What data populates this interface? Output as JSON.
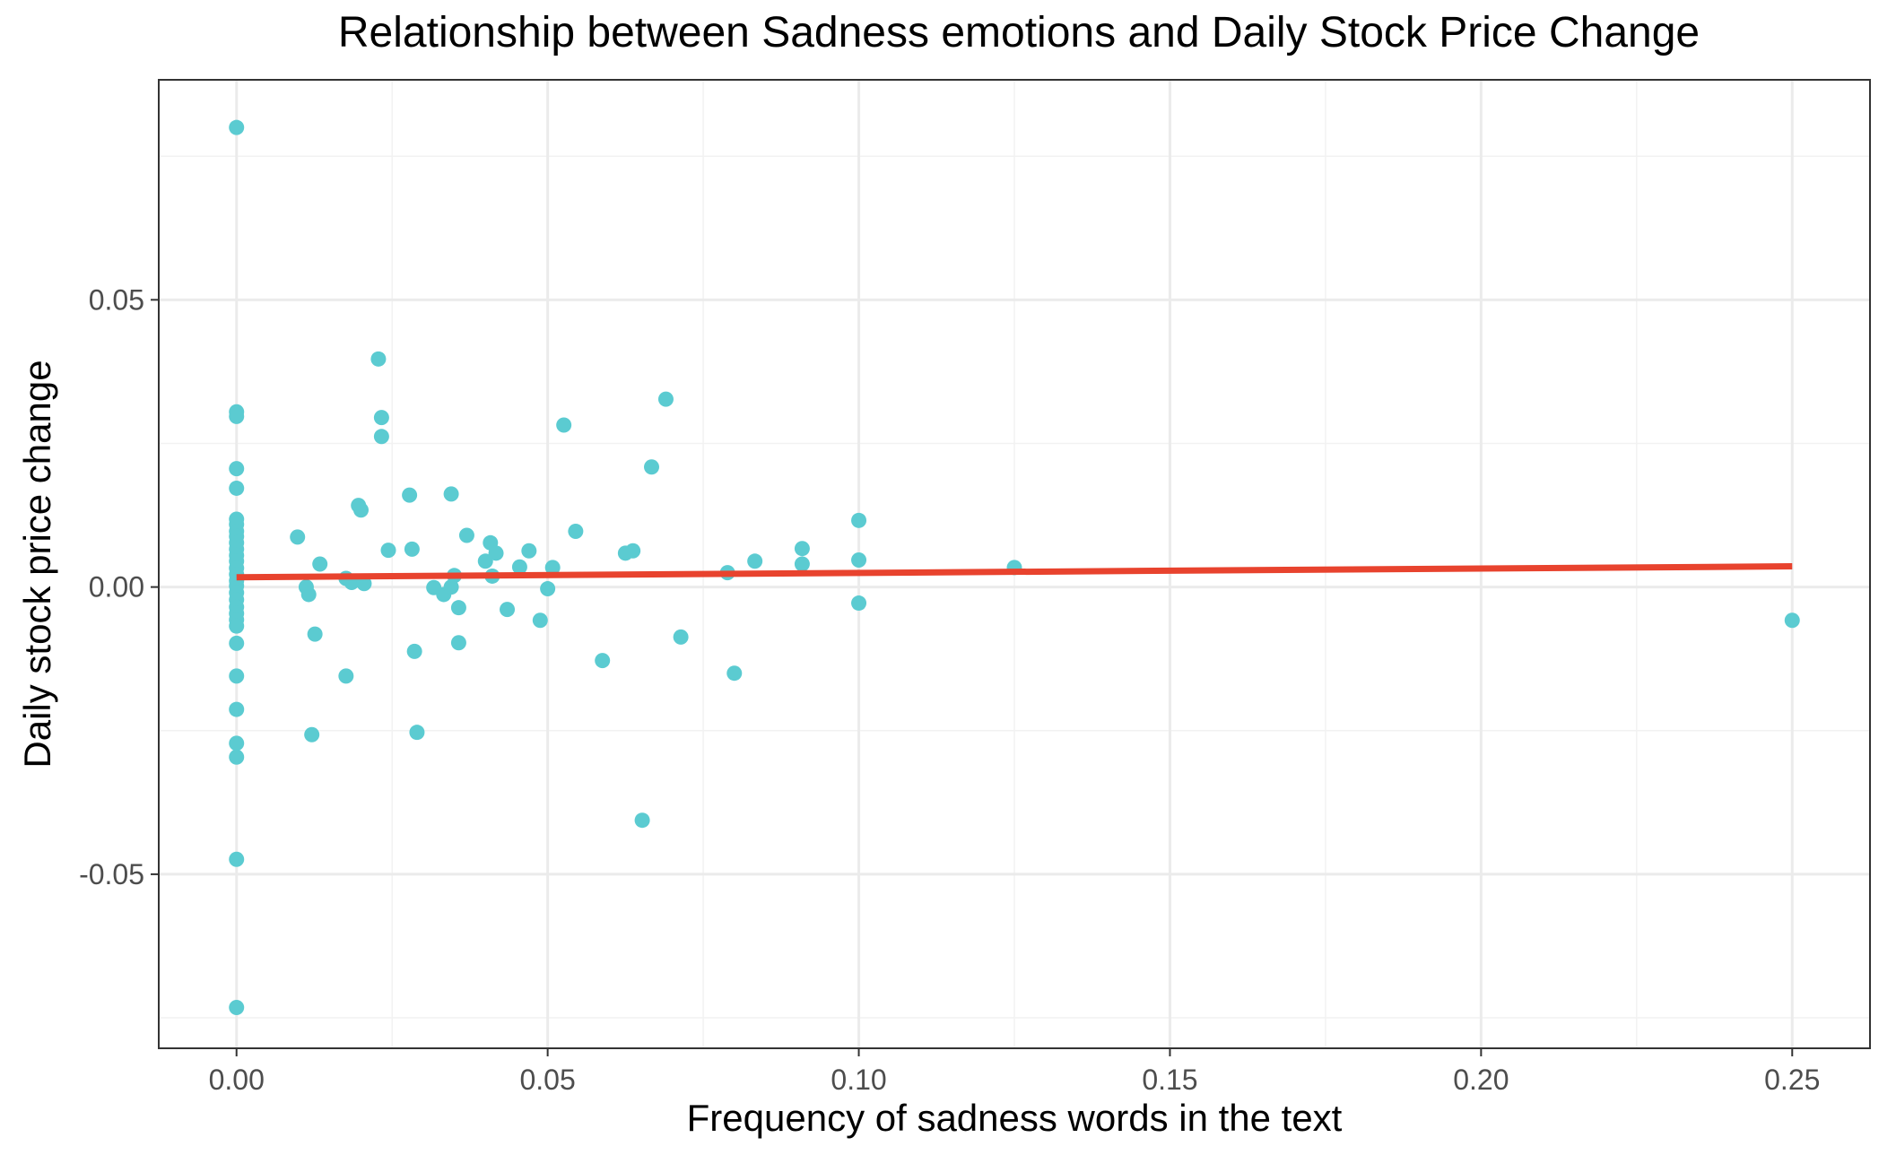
{
  "chart_data": {
    "type": "scatter",
    "title": "Relationship between Sadness emotions and Daily Stock Price Change",
    "xlabel": "Frequency of sadness words in the text",
    "ylabel": "Daily stock price change",
    "xlim": [
      -0.0125,
      0.2625
    ],
    "ylim": [
      -0.0803,
      0.0883
    ],
    "x_ticks": [
      0.0,
      0.05,
      0.1,
      0.15,
      0.2,
      0.25
    ],
    "x_tick_labels": [
      "0.00",
      "0.05",
      "0.10",
      "0.15",
      "0.20",
      "0.25"
    ],
    "y_ticks": [
      -0.05,
      0.0,
      0.05
    ],
    "y_tick_labels": [
      "-0.05",
      "0.00",
      "0.05"
    ],
    "grid": true,
    "colors": {
      "points": "#5bcbd1",
      "trend_line": "#e8432e"
    },
    "series": [
      {
        "values": [
          {
            "x": 0.0,
            "y": 0.08
          },
          {
            "x": 0.0,
            "y": 0.0305
          },
          {
            "x": 0.0,
            "y": 0.0297
          },
          {
            "x": 0.0,
            "y": 0.0206
          },
          {
            "x": 0.0,
            "y": 0.0172
          },
          {
            "x": 0.0,
            "y": 0.0118
          },
          {
            "x": 0.0,
            "y": 0.0109
          },
          {
            "x": 0.0,
            "y": 0.0097
          },
          {
            "x": 0.0,
            "y": 0.0088
          },
          {
            "x": 0.0,
            "y": 0.0077
          },
          {
            "x": 0.0,
            "y": 0.0066
          },
          {
            "x": 0.0,
            "y": 0.0055
          },
          {
            "x": 0.0,
            "y": 0.0045
          },
          {
            "x": 0.0,
            "y": 0.0033
          },
          {
            "x": 0.0,
            "y": 0.0022
          },
          {
            "x": 0.0,
            "y": 0.0011
          },
          {
            "x": 0.0,
            "y": 0.0002
          },
          {
            "x": 0.0,
            "y": -0.001
          },
          {
            "x": 0.0,
            "y": -0.0022
          },
          {
            "x": 0.0,
            "y": -0.0035
          },
          {
            "x": 0.0,
            "y": -0.0046
          },
          {
            "x": 0.0,
            "y": -0.0057
          },
          {
            "x": 0.0,
            "y": -0.0068
          },
          {
            "x": 0.0,
            "y": -0.0098
          },
          {
            "x": 0.0,
            "y": -0.0155
          },
          {
            "x": 0.0,
            "y": -0.0213
          },
          {
            "x": 0.0,
            "y": -0.0272
          },
          {
            "x": 0.0,
            "y": -0.0296
          },
          {
            "x": 0.0,
            "y": -0.0474
          },
          {
            "x": 0.0,
            "y": -0.0732
          },
          {
            "x": 0.0098,
            "y": 0.0087
          },
          {
            "x": 0.0112,
            "y": 0.0
          },
          {
            "x": 0.0116,
            "y": -0.0013
          },
          {
            "x": 0.0121,
            "y": -0.0257
          },
          {
            "x": 0.0126,
            "y": -0.0082
          },
          {
            "x": 0.0134,
            "y": 0.004
          },
          {
            "x": 0.0176,
            "y": 0.0015
          },
          {
            "x": 0.0176,
            "y": -0.0155
          },
          {
            "x": 0.0185,
            "y": 0.0008
          },
          {
            "x": 0.0196,
            "y": 0.0142
          },
          {
            "x": 0.02,
            "y": 0.0134
          },
          {
            "x": 0.0205,
            "y": 0.0006
          },
          {
            "x": 0.0228,
            "y": 0.0397
          },
          {
            "x": 0.0233,
            "y": 0.0295
          },
          {
            "x": 0.0233,
            "y": 0.0262
          },
          {
            "x": 0.0244,
            "y": 0.0064
          },
          {
            "x": 0.0278,
            "y": 0.016
          },
          {
            "x": 0.0282,
            "y": 0.0066
          },
          {
            "x": 0.0286,
            "y": -0.0112
          },
          {
            "x": 0.029,
            "y": -0.0253
          },
          {
            "x": 0.0317,
            "y": -0.0001
          },
          {
            "x": 0.0333,
            "y": -0.0013
          },
          {
            "x": 0.0345,
            "y": 0.0162
          },
          {
            "x": 0.0345,
            "y": 0.0
          },
          {
            "x": 0.035,
            "y": 0.002
          },
          {
            "x": 0.0357,
            "y": -0.0036
          },
          {
            "x": 0.0357,
            "y": -0.0097
          },
          {
            "x": 0.037,
            "y": 0.009
          },
          {
            "x": 0.04,
            "y": 0.0045
          },
          {
            "x": 0.0408,
            "y": 0.0077
          },
          {
            "x": 0.0411,
            "y": 0.0019
          },
          {
            "x": 0.0417,
            "y": 0.0059
          },
          {
            "x": 0.0435,
            "y": -0.0039
          },
          {
            "x": 0.0455,
            "y": 0.0035
          },
          {
            "x": 0.047,
            "y": 0.0063
          },
          {
            "x": 0.0488,
            "y": -0.0058
          },
          {
            "x": 0.05,
            "y": -0.0003
          },
          {
            "x": 0.0508,
            "y": 0.0034
          },
          {
            "x": 0.0526,
            "y": 0.0282
          },
          {
            "x": 0.0545,
            "y": 0.0097
          },
          {
            "x": 0.0588,
            "y": -0.0128
          },
          {
            "x": 0.0625,
            "y": 0.0059
          },
          {
            "x": 0.0637,
            "y": 0.0063
          },
          {
            "x": 0.0652,
            "y": -0.0406
          },
          {
            "x": 0.0667,
            "y": 0.0209
          },
          {
            "x": 0.069,
            "y": 0.0327
          },
          {
            "x": 0.0714,
            "y": -0.0087
          },
          {
            "x": 0.0789,
            "y": 0.0025
          },
          {
            "x": 0.08,
            "y": -0.015
          },
          {
            "x": 0.0833,
            "y": 0.0045
          },
          {
            "x": 0.0909,
            "y": 0.0067
          },
          {
            "x": 0.0909,
            "y": 0.004
          },
          {
            "x": 0.1,
            "y": 0.0116
          },
          {
            "x": 0.1,
            "y": 0.0047
          },
          {
            "x": 0.1,
            "y": -0.0028
          },
          {
            "x": 0.125,
            "y": 0.0034
          },
          {
            "x": 0.25,
            "y": -0.0058
          }
        ]
      }
    ],
    "trend_line": {
      "type": "linear",
      "x": [
        0.0,
        0.25
      ],
      "y": [
        0.0017,
        0.0036
      ]
    }
  }
}
